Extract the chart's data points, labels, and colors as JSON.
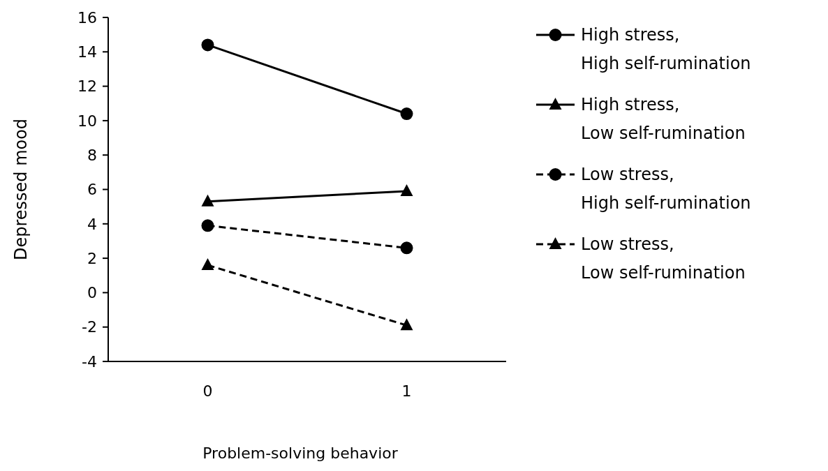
{
  "chart_data": {
    "type": "line",
    "xlabel": "Problem-solving behavior",
    "ylabel": "Depressed mood",
    "categories": [
      "0",
      "1"
    ],
    "ylim": [
      -4,
      16
    ],
    "yticks": [
      -4,
      -2,
      0,
      2,
      4,
      6,
      8,
      10,
      12,
      14,
      16
    ],
    "grid": false,
    "legend": "right",
    "series": [
      {
        "name": "High stress, High self-rumination",
        "color": "#000000",
        "values": [
          14.4,
          10.4
        ],
        "marker": "circle",
        "line_style": "solid"
      },
      {
        "name": "High stress, Low self-rumination",
        "color": "#000000",
        "values": [
          5.3,
          5.9
        ],
        "marker": "triangle",
        "line_style": "solid"
      },
      {
        "name": "Low stress, High self-rumination",
        "color": "#000000",
        "values": [
          3.9,
          2.6
        ],
        "marker": "circle",
        "line_style": "dashed"
      },
      {
        "name": "Low stress, Low self-rumination",
        "color": "#000000",
        "values": [
          1.6,
          -1.9
        ],
        "marker": "triangle",
        "line_style": "dashed"
      }
    ]
  }
}
